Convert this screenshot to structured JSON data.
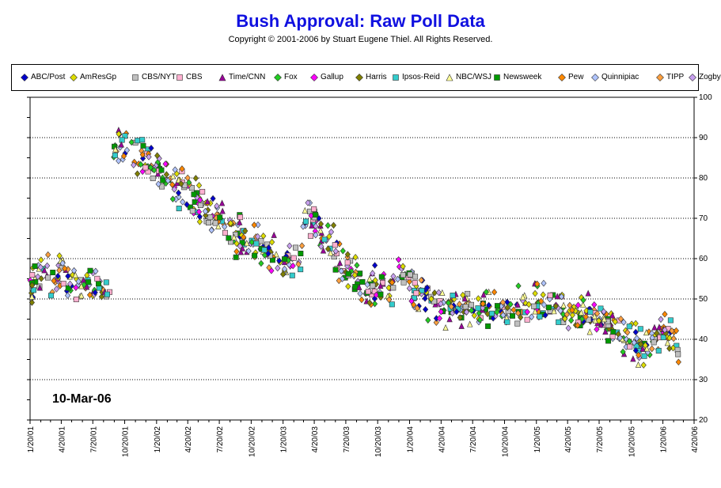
{
  "header": {
    "title": "Bush Approval:  Raw Poll Data",
    "subtitle": "Copyright © 2001-2006 by Stuart Eugene Thiel.  All Rights Reserved."
  },
  "date_stamp": "10-Mar-06",
  "chart_data": {
    "type": "scatter",
    "title": "Bush Approval:  Raw Poll Data",
    "xlabel": "",
    "ylabel": "",
    "xlim": [
      "2001-01-20",
      "2006-04-20"
    ],
    "ylim": [
      20,
      100
    ],
    "yticks": [
      20,
      30,
      40,
      50,
      60,
      70,
      80,
      90,
      100
    ],
    "y_axis_side": "right",
    "x_tick_labels": [
      "1/20/01",
      "4/20/01",
      "7/20/01",
      "10/20/01",
      "1/20/02",
      "4/20/02",
      "7/20/02",
      "10/20/02",
      "1/20/03",
      "4/20/03",
      "7/20/03",
      "10/20/03",
      "1/20/04",
      "4/20/04",
      "7/20/04",
      "10/20/04",
      "1/20/05",
      "4/20/05",
      "7/20/05",
      "10/20/05",
      "1/20/06",
      "4/20/06"
    ],
    "grid": "horizontal-dotted",
    "legend_position": "top",
    "series": [
      {
        "name": "ABC/Post",
        "color": "#0000cc",
        "marker": "diamond"
      },
      {
        "name": "AmResGp",
        "color": "#dddd00",
        "marker": "diamond"
      },
      {
        "name": "CBS/NYT",
        "color": "#c0c0c0",
        "marker": "square"
      },
      {
        "name": "CBS",
        "color": "#ffb0d0",
        "marker": "square"
      },
      {
        "name": "Time/CNN",
        "color": "#990099",
        "marker": "triangle"
      },
      {
        "name": "Fox",
        "color": "#22cc22",
        "marker": "diamond"
      },
      {
        "name": "Gallup",
        "color": "#ff00ff",
        "marker": "diamond"
      },
      {
        "name": "Harris",
        "color": "#808000",
        "marker": "diamond"
      },
      {
        "name": "Ipsos-Reid",
        "color": "#33cccc",
        "marker": "square"
      },
      {
        "name": "NBC/WSJ",
        "color": "#ffff99",
        "marker": "triangle"
      },
      {
        "name": "Newsweek",
        "color": "#009900",
        "marker": "square"
      },
      {
        "name": "Pew",
        "color": "#ff8800",
        "marker": "diamond"
      },
      {
        "name": "Quinnipiac",
        "color": "#b0c4ff",
        "marker": "diamond"
      },
      {
        "name": "TIPP",
        "color": "#ffa040",
        "marker": "diamond"
      },
      {
        "name": "Zogby",
        "color": "#c8a0f0",
        "marker": "diamond"
      }
    ],
    "trend_anchors": [
      [
        "2001-01-20",
        53
      ],
      [
        "2001-02-20",
        56
      ],
      [
        "2001-04-20",
        57
      ],
      [
        "2001-06-20",
        53
      ],
      [
        "2001-08-20",
        53
      ],
      [
        "2001-09-11",
        53
      ],
      [
        "2001-09-20",
        88
      ],
      [
        "2001-10-20",
        87
      ],
      [
        "2001-12-20",
        84
      ],
      [
        "2002-01-20",
        82
      ],
      [
        "2002-04-20",
        76
      ],
      [
        "2002-07-20",
        69
      ],
      [
        "2002-10-20",
        64
      ],
      [
        "2003-01-20",
        59
      ],
      [
        "2003-03-10",
        58
      ],
      [
        "2003-03-20",
        69
      ],
      [
        "2003-04-20",
        70
      ],
      [
        "2003-05-20",
        65
      ],
      [
        "2003-07-20",
        58
      ],
      [
        "2003-09-20",
        52
      ],
      [
        "2003-12-10",
        53
      ],
      [
        "2003-12-20",
        58
      ],
      [
        "2004-01-10",
        56
      ],
      [
        "2004-01-20",
        53
      ],
      [
        "2004-04-20",
        48
      ],
      [
        "2004-07-20",
        47
      ],
      [
        "2004-10-20",
        48
      ],
      [
        "2005-01-20",
        50
      ],
      [
        "2005-04-20",
        47
      ],
      [
        "2005-07-20",
        46
      ],
      [
        "2005-10-20",
        40
      ],
      [
        "2005-11-20",
        38
      ],
      [
        "2006-01-20",
        42
      ],
      [
        "2006-03-10",
        38
      ]
    ],
    "points_note": "approximately 900 poll readings scattered around trend, spread ±4 points"
  }
}
